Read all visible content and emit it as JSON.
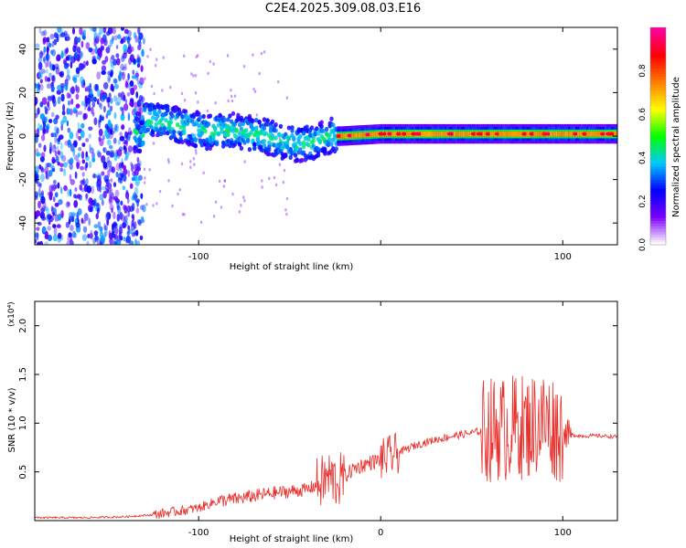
{
  "page_title": "C2E4.2025.309.08.03.E16",
  "chart_data": [
    {
      "type": "heatmap",
      "panel": "spectrogram",
      "xlabel": "Height of straight line (km)",
      "ylabel": "Frequency (Hz)",
      "xlim": [
        -190,
        130
      ],
      "ylim": [
        -50,
        50
      ],
      "xticks": [
        -100,
        0,
        100
      ],
      "xtick_labels": [
        "-100",
        "",
        "100"
      ],
      "yticks": [
        -40,
        -20,
        0,
        20,
        40
      ],
      "ytick_labels": [
        "-40",
        "-20",
        "0",
        "20",
        "40"
      ],
      "ridge": {
        "x": [
          -130,
          -110,
          -95,
          -85,
          -75,
          -65,
          -55,
          -45,
          -35,
          -28,
          -22,
          0,
          20,
          40,
          60,
          80,
          100,
          130
        ],
        "freq": [
          8,
          5,
          2,
          3,
          2,
          0,
          -2,
          -4,
          -2,
          0,
          0,
          1,
          1,
          1,
          1,
          1,
          1,
          1
        ]
      },
      "noise_region_x": [
        -190,
        -130
      ],
      "colorbar": {
        "label": "Normalized spectral amplitude",
        "range": [
          0.0,
          1.0
        ],
        "ticks": [
          0.0,
          0.2,
          0.4,
          0.6,
          0.8
        ],
        "tick_labels": [
          "0.0",
          "0.2",
          "0.4",
          "0.6",
          "0.8"
        ],
        "colors": [
          "#ffffff",
          "#7a00ff",
          "#0000ff",
          "#00c8ff",
          "#00ff00",
          "#ffff00",
          "#ff8000",
          "#ff0000",
          "#ff00a0"
        ]
      }
    },
    {
      "type": "line",
      "panel": "snr",
      "xlabel": "Height of straight line (km)",
      "ylabel": "SNR (10 * v/v)",
      "scale_label": "(x10⁴)",
      "xlim": [
        -190,
        130
      ],
      "ylim": [
        0,
        2.25
      ],
      "xticks": [
        -100,
        0,
        100
      ],
      "xtick_labels": [
        "-100",
        "0",
        "100"
      ],
      "yticks": [
        0.5,
        1.0,
        1.5,
        2.0
      ],
      "ytick_labels": [
        "0.5",
        "1.0",
        "1.5",
        "2.0"
      ],
      "line_color": "#e8302c",
      "series": [
        {
          "name": "SNR",
          "x": [
            -190,
            -160,
            -140,
            -125,
            -110,
            -100,
            -90,
            -80,
            -70,
            -60,
            -50,
            -40,
            -32,
            -28,
            -24,
            -20,
            -15,
            -10,
            -5,
            0,
            10,
            20,
            30,
            40,
            50,
            55,
            60,
            65,
            70,
            75,
            80,
            85,
            90,
            95,
            100,
            105,
            110,
            120,
            130
          ],
          "y": [
            0.03,
            0.03,
            0.04,
            0.06,
            0.1,
            0.13,
            0.2,
            0.22,
            0.25,
            0.28,
            0.3,
            0.32,
            0.4,
            0.45,
            0.4,
            0.45,
            0.53,
            0.57,
            0.6,
            0.62,
            0.7,
            0.78,
            0.83,
            0.87,
            0.9,
            0.92,
            0.93,
            0.95,
            0.93,
            0.98,
            0.95,
            1.0,
            1.02,
            0.97,
            0.9,
            0.88,
            0.87,
            0.87,
            0.86
          ]
        }
      ]
    }
  ]
}
